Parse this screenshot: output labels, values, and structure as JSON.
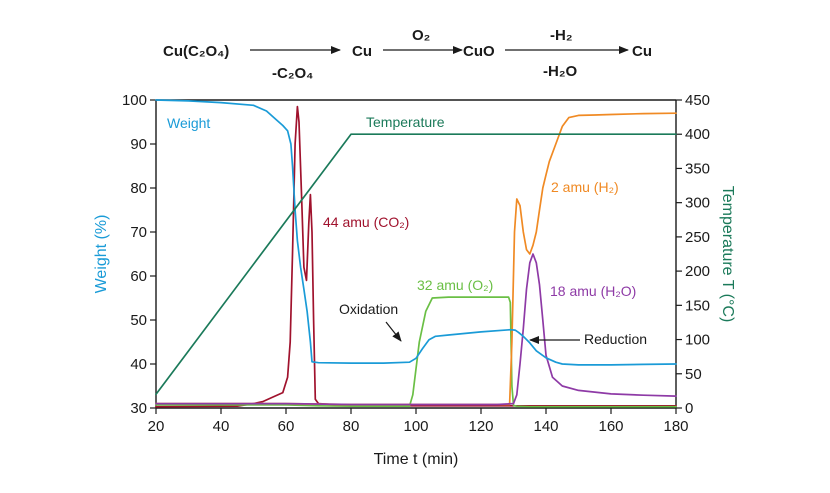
{
  "scheme": {
    "reactant": "Cu(C₂O₄)",
    "step1_loss": "-C₂O₄",
    "product1": "Cu",
    "step2_gas": "O₂",
    "product2": "CuO",
    "step3_gas": "-H₂",
    "step3_loss": "-H₂O",
    "product3": "Cu"
  },
  "chart_data": {
    "type": "line",
    "xlabel": "Time t (min)",
    "ylabel_left": "Weight (%)",
    "ylabel_right": "Temperature T (°C)",
    "xlim": [
      20,
      180
    ],
    "ylim_left": [
      30,
      100
    ],
    "ylim_right": [
      0,
      450
    ],
    "x_ticks": [
      "20",
      "40",
      "60",
      "80",
      "100",
      "120",
      "140",
      "160",
      "180"
    ],
    "y_left_ticks": [
      "30",
      "40",
      "50",
      "60",
      "70",
      "80",
      "90",
      "100"
    ],
    "y_right_ticks": [
      "0",
      "50",
      "100",
      "150",
      "200",
      "250",
      "300",
      "350",
      "400",
      "450"
    ],
    "grid": false,
    "colors": {
      "weight": "#1a9bd7",
      "temperature": "#1b7a5a",
      "co2": "#a0122d",
      "o2": "#6abf45",
      "h2": "#f08a24",
      "h2o": "#8e3aa6",
      "axis": "#1a1a1a"
    },
    "series": [
      {
        "name": "Weight",
        "axis": "left",
        "color_key": "weight",
        "x": [
          20,
          30,
          40,
          50,
          54,
          57,
          59,
          60.5,
          61.5,
          62,
          62.8,
          63.5,
          64.5,
          65.5,
          66.5,
          67.5,
          68,
          70,
          80,
          90,
          98,
          100,
          102,
          104,
          106,
          110,
          120,
          129,
          130.5,
          131.5,
          133,
          135,
          137,
          140,
          143,
          145,
          150,
          160,
          170,
          180
        ],
        "y": [
          100,
          99.8,
          99.4,
          98.8,
          97.5,
          95.5,
          94.2,
          93,
          90,
          85,
          75,
          68,
          62,
          57,
          52,
          45,
          40.5,
          40.3,
          40.2,
          40.2,
          40.4,
          41.3,
          43.5,
          45.5,
          46.3,
          46.6,
          47.3,
          47.8,
          47.7,
          47.2,
          46.3,
          44.8,
          43,
          41.4,
          40.4,
          40,
          39.8,
          39.8,
          39.9,
          40
        ]
      },
      {
        "name": "Temperature",
        "axis": "right",
        "color_key": "temperature",
        "x": [
          20,
          80,
          180
        ],
        "y": [
          20,
          400,
          400
        ]
      },
      {
        "name": "44 amu (CO₂)",
        "axis": "left",
        "color_key": "co2",
        "x": [
          20,
          45,
          50,
          53,
          56,
          59,
          60.5,
          61.3,
          62,
          62.8,
          63.5,
          64,
          64.8,
          65.5,
          66.3,
          67,
          67.5,
          68,
          68.5,
          69,
          70,
          80,
          180
        ],
        "y": [
          30.3,
          30.4,
          31,
          31.5,
          32.5,
          33.5,
          37,
          45,
          65,
          90,
          98.5,
          95,
          78,
          62,
          59,
          72,
          78.5,
          70,
          50,
          32,
          31,
          30.5,
          30.5
        ]
      },
      {
        "name": "32 amu (O₂)",
        "axis": "left",
        "color_key": "o2",
        "x": [
          20,
          60,
          70,
          80,
          98,
          99,
          101,
          103,
          105,
          110,
          120,
          128.5,
          129,
          129.5,
          130,
          131,
          135,
          150,
          180
        ],
        "y": [
          30.7,
          30.7,
          30.5,
          30.4,
          30.4,
          33,
          45,
          52,
          55,
          55.2,
          55.2,
          55.2,
          54,
          35,
          30.6,
          30.4,
          30.3,
          30.3,
          30.3
        ]
      },
      {
        "name": "2 amu (H₂)",
        "axis": "left",
        "color_key": "h2",
        "x": [
          20,
          60,
          80,
          128.8,
          129.5,
          130.3,
          131,
          132,
          133,
          134,
          135,
          136,
          137,
          138,
          139,
          140,
          141,
          143,
          145,
          147,
          150,
          155,
          160,
          170,
          180
        ],
        "y": [
          31,
          31,
          30.8,
          30.8,
          45,
          70,
          77.5,
          76,
          70,
          66,
          65,
          67,
          70,
          75,
          80,
          83,
          86,
          90,
          94,
          96,
          96.5,
          96.6,
          96.7,
          96.9,
          97
        ]
      },
      {
        "name": "18 amu (H₂O)",
        "axis": "left",
        "color_key": "h2o",
        "x": [
          20,
          60,
          80,
          125,
          130,
          131,
          132,
          133,
          134,
          135,
          136,
          137,
          138,
          139,
          140,
          142,
          145,
          150,
          160,
          170,
          180
        ],
        "y": [
          31,
          31,
          30.8,
          30.8,
          31,
          33,
          40,
          48,
          57,
          63,
          65,
          63,
          58,
          50,
          42,
          37,
          35,
          34,
          33.2,
          32.9,
          32.7
        ]
      }
    ],
    "annotations": {
      "weight": "Weight",
      "temperature": "Temperature",
      "co2": "44 amu (CO₂)",
      "o2": "32 amu (O₂)",
      "h2": "2 amu (H₂)",
      "h2o": "18 amu (H₂O)",
      "oxidation": "Oxidation",
      "reduction": "Reduction"
    }
  }
}
